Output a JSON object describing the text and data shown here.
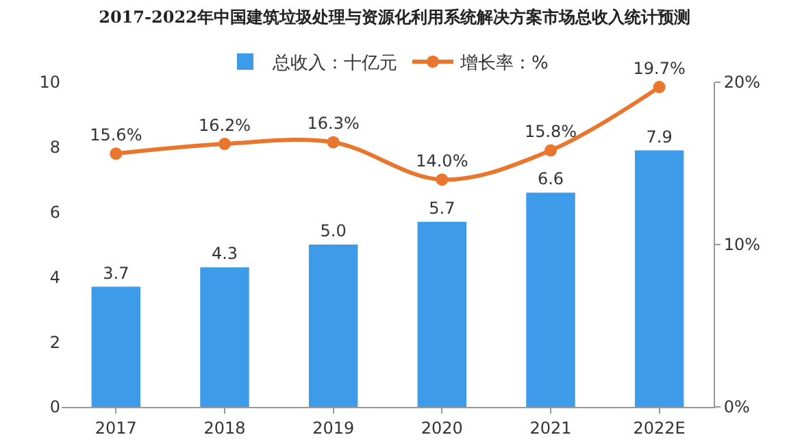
{
  "chart_data": {
    "type": "bar",
    "title": "2017-2022年中国建筑垃圾处理与资源化利用系统解决方案市场总收入统计预测",
    "categories": [
      "2017",
      "2018",
      "2019",
      "2020",
      "2021",
      "2022E"
    ],
    "series": [
      {
        "name": "总收入：十亿元",
        "color": "#3d9be9",
        "values": [
          3.7,
          4.3,
          5.0,
          5.7,
          6.6,
          7.9
        ],
        "value_labels": [
          "3.7",
          "4.3",
          "5.0",
          "5.7",
          "6.6",
          "7.9"
        ]
      },
      {
        "name": "增长率：%",
        "type": "line",
        "axis": "y2",
        "color": "#e8762d",
        "values": [
          15.6,
          16.2,
          16.3,
          14.0,
          15.8,
          19.7
        ],
        "value_labels": [
          "15.6%",
          "16.2%",
          "16.3%",
          "14.0%",
          "15.8%",
          "19.7%"
        ]
      }
    ],
    "ylim": [
      0,
      10
    ],
    "yticks": [
      0,
      2,
      4,
      6,
      8,
      10
    ],
    "y2lim": [
      0,
      20
    ],
    "y2ticks": [
      {
        "value": 0,
        "label": "0%"
      },
      {
        "value": 10,
        "label": "10%"
      },
      {
        "value": 20,
        "label": "20%"
      }
    ],
    "legend": "top",
    "marker": "circle",
    "line_style": "solid",
    "grid": false
  }
}
